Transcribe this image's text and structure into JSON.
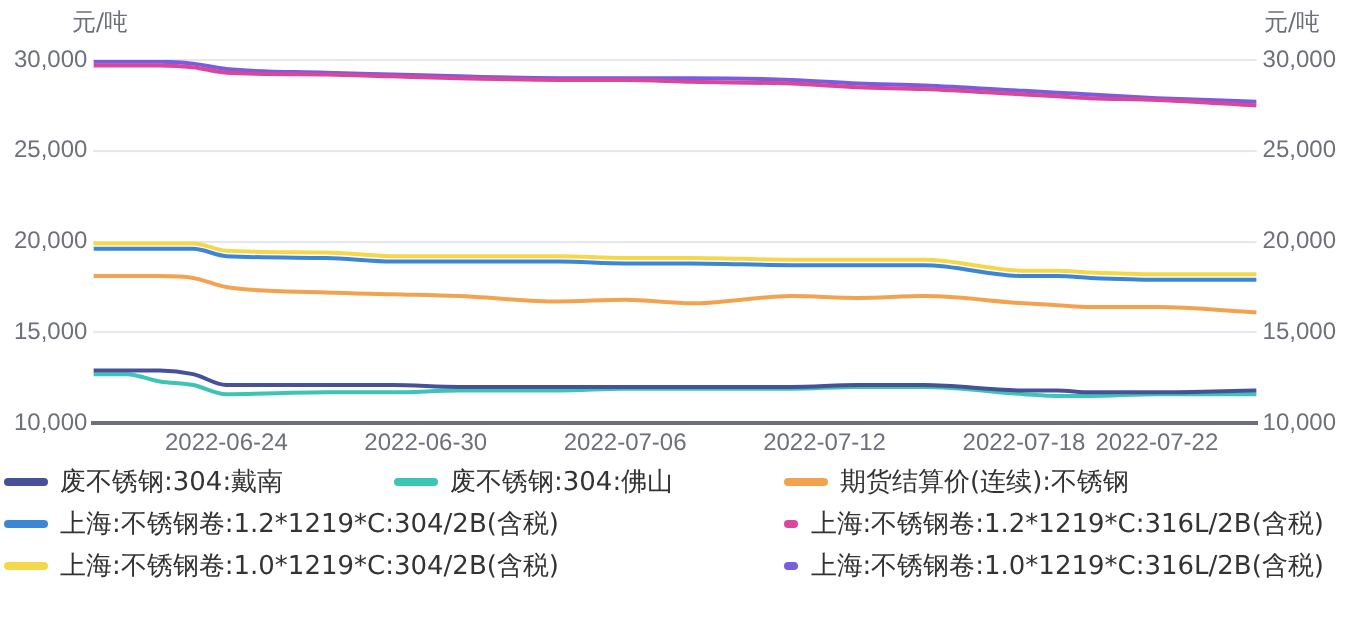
{
  "chart_data": {
    "type": "line",
    "ylabel": "元/吨",
    "y2label": "元/吨",
    "x": [
      "2022-06-20",
      "2022-06-21",
      "2022-06-22",
      "2022-06-23",
      "2022-06-24",
      "2022-06-27",
      "2022-06-29",
      "2022-07-01",
      "2022-07-04",
      "2022-07-06",
      "2022-07-08",
      "2022-07-11",
      "2022-07-13",
      "2022-07-15",
      "2022-07-18",
      "2022-07-19",
      "2022-07-20",
      "2022-07-22",
      "2022-07-25"
    ],
    "xlim": [
      "2022-06-20",
      "2022-07-25"
    ],
    "xticks": [
      "2022-06-24",
      "2022-06-30",
      "2022-07-06",
      "2022-07-12",
      "2022-07-18",
      "2022-07-22"
    ],
    "ylim": [
      10000,
      30000
    ],
    "yticks": [
      {
        "value": 10000,
        "label": "10,000"
      },
      {
        "value": 15000,
        "label": "15,000"
      },
      {
        "value": 20000,
        "label": "20,000"
      },
      {
        "value": 25000,
        "label": "25,000"
      },
      {
        "value": 30000,
        "label": "30,000"
      }
    ],
    "y2lim": [
      10000,
      30000
    ],
    "y2ticks": [
      {
        "value": 10000,
        "label": "10,000"
      },
      {
        "value": 15000,
        "label": "15,000"
      },
      {
        "value": 20000,
        "label": "20,000"
      },
      {
        "value": 25000,
        "label": "25,000"
      },
      {
        "value": 30000,
        "label": "30,000"
      }
    ],
    "grid": "y",
    "legend": "bottom",
    "marker": "none",
    "line_style": "solid",
    "series": [
      {
        "name": "废不锈钢:304:戴南",
        "color": "#46519a",
        "values": [
          12900,
          12900,
          12900,
          12700,
          12100,
          12100,
          12100,
          12000,
          12000,
          12000,
          12000,
          12000,
          12100,
          12100,
          11800,
          11800,
          11700,
          11700,
          11800
        ]
      },
      {
        "name": "废不锈钢:304:佛山",
        "color": "#3cc4b4",
        "values": [
          12700,
          12700,
          12300,
          12100,
          11600,
          11700,
          11700,
          11800,
          11800,
          11900,
          11900,
          11900,
          12000,
          12000,
          11600,
          11500,
          11500,
          11600,
          11600
        ]
      },
      {
        "name": "期货结算价(连续):不锈钢",
        "color": "#f3a34f",
        "values": [
          18100,
          18100,
          18100,
          18000,
          17500,
          17200,
          17100,
          17000,
          16700,
          16800,
          16600,
          17000,
          16900,
          17000,
          16600,
          16500,
          16400,
          16400,
          16100
        ]
      },
      {
        "name": "上海:不锈钢卷:1.2*1219*C:304/2B(含税)",
        "color": "#3b87d6",
        "values": [
          19600,
          19600,
          19600,
          19600,
          19200,
          19100,
          18900,
          18900,
          18900,
          18800,
          18800,
          18700,
          18700,
          18700,
          18100,
          18100,
          18000,
          17900,
          17900
        ]
      },
      {
        "name": "上海:不锈钢卷:1.2*1219*C:316L/2B(含税)",
        "color": "#d9479a",
        "values": [
          29700,
          29700,
          29700,
          29600,
          29300,
          29200,
          29100,
          29000,
          28900,
          28900,
          28800,
          28700,
          28500,
          28400,
          28100,
          28000,
          27900,
          27800,
          27500
        ]
      },
      {
        "name": "上海:不锈钢卷:1.0*1219*C:304/2B(含税)",
        "color": "#f5d84a",
        "values": [
          19900,
          19900,
          19900,
          19900,
          19500,
          19400,
          19200,
          19200,
          19200,
          19100,
          19100,
          19000,
          19000,
          19000,
          18400,
          18400,
          18300,
          18200,
          18200
        ]
      },
      {
        "name": "上海:不锈钢卷:1.0*1219*C:316L/2B(含税)",
        "color": "#7b5be0",
        "values": [
          29900,
          29900,
          29900,
          29800,
          29500,
          29300,
          29200,
          29100,
          29000,
          29000,
          29000,
          28900,
          28700,
          28600,
          28300,
          28200,
          28100,
          27900,
          27700
        ]
      }
    ]
  }
}
